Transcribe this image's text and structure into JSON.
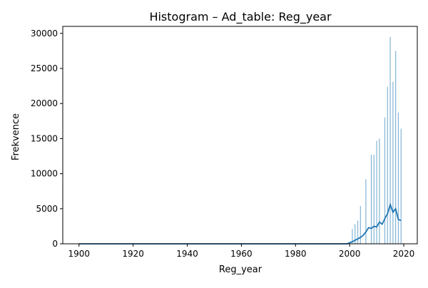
{
  "chart_data": {
    "type": "bar",
    "title": "Histogram – Ad_table: Reg_year",
    "xlabel": "Reg_year",
    "ylabel": "Frekvence",
    "xlim": [
      1894,
      2025
    ],
    "ylim": [
      0,
      31000
    ],
    "xticks": [
      1900,
      1920,
      1940,
      1960,
      1980,
      2000,
      2020
    ],
    "yticks": [
      0,
      5000,
      10000,
      15000,
      20000,
      25000,
      30000
    ],
    "bar_color": "#1f77b4",
    "line_color": "#1f77b4",
    "bars": [
      {
        "x": 2001,
        "y": 2100
      },
      {
        "x": 2002,
        "y": 2800
      },
      {
        "x": 2003,
        "y": 3300
      },
      {
        "x": 2004,
        "y": 5400
      },
      {
        "x": 2006,
        "y": 9200
      },
      {
        "x": 2008,
        "y": 12700
      },
      {
        "x": 2009,
        "y": 12700
      },
      {
        "x": 2010,
        "y": 14700
      },
      {
        "x": 2011,
        "y": 15000
      },
      {
        "x": 2013,
        "y": 18000
      },
      {
        "x": 2014,
        "y": 22400
      },
      {
        "x": 2015,
        "y": 29500
      },
      {
        "x": 2016,
        "y": 23100
      },
      {
        "x": 2017,
        "y": 27500
      },
      {
        "x": 2018,
        "y": 18700
      },
      {
        "x": 2019,
        "y": 16400
      }
    ],
    "density_line": [
      {
        "x": 1900,
        "y": 0
      },
      {
        "x": 1920,
        "y": 0
      },
      {
        "x": 1960,
        "y": 0
      },
      {
        "x": 1999,
        "y": 0
      },
      {
        "x": 2000,
        "y": 150
      },
      {
        "x": 2001,
        "y": 300
      },
      {
        "x": 2002,
        "y": 500
      },
      {
        "x": 2003,
        "y": 700
      },
      {
        "x": 2004,
        "y": 900
      },
      {
        "x": 2005,
        "y": 1200
      },
      {
        "x": 2006,
        "y": 1700
      },
      {
        "x": 2007,
        "y": 2300
      },
      {
        "x": 2008,
        "y": 2200
      },
      {
        "x": 2009,
        "y": 2500
      },
      {
        "x": 2010,
        "y": 2400
      },
      {
        "x": 2011,
        "y": 3100
      },
      {
        "x": 2012,
        "y": 2800
      },
      {
        "x": 2013,
        "y": 3600
      },
      {
        "x": 2014,
        "y": 4300
      },
      {
        "x": 2015,
        "y": 5600
      },
      {
        "x": 2016,
        "y": 4500
      },
      {
        "x": 2017,
        "y": 5000
      },
      {
        "x": 2018,
        "y": 3500
      },
      {
        "x": 2019,
        "y": 3300
      }
    ]
  }
}
